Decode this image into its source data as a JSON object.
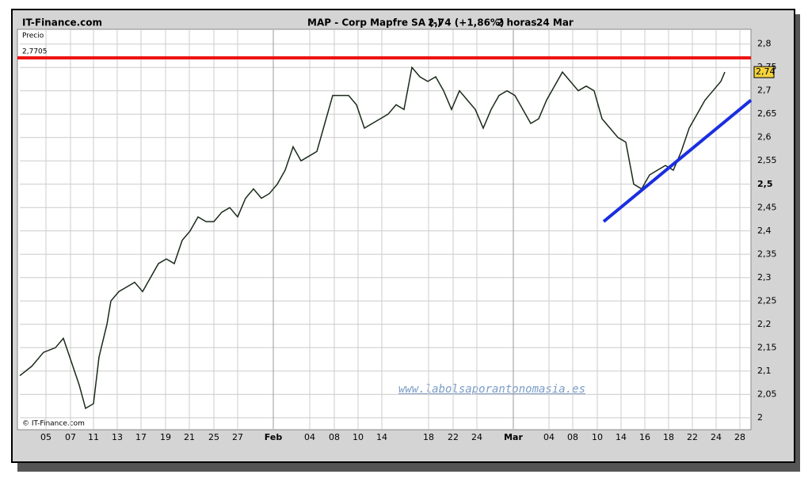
{
  "header": {
    "brand": "IT-Finance.com",
    "instrument": "MAP - Corp Mapfre SA (-)",
    "quote": "2,74 (+1,86%)",
    "interval": "2 horas",
    "date": "24 Mar"
  },
  "chart_data": {
    "type": "line",
    "y_label": "Precio",
    "copyright": "© IT-Finance.com",
    "watermark": "www.labolsaporantonomasia.es",
    "x": [
      0,
      1.5,
      3,
      4.5,
      5.5,
      6.5,
      7.5,
      8.3,
      9.3,
      10,
      11,
      11.5,
      12.5,
      13.5,
      14.5,
      15.5,
      16.5,
      17.5,
      18.5,
      19.5,
      20.5,
      21.5,
      22.5,
      23.5,
      24.5,
      25.5,
      26.5,
      27.5,
      28.5,
      29.5,
      30.5,
      31.5,
      32.5,
      33.5,
      34.5,
      35.5,
      36.5,
      37.5,
      38.5,
      39.5,
      40.5,
      41.5,
      42.5,
      43.5,
      44.5,
      45.5,
      46.5,
      47.5,
      48.5,
      49.5,
      50.5,
      51.5,
      52.5,
      53.5,
      54.5,
      55.5,
      56.5,
      57.5,
      58.5,
      59.5,
      60.5,
      61.5,
      62.5,
      63.5,
      64.5,
      65.5,
      66.5,
      67.5,
      68.5,
      69.5,
      70.5,
      71.5,
      72.5,
      73.5,
      74.5,
      75.5,
      76.5,
      77.5,
      78.5,
      79.5,
      80.5,
      81.5,
      82.5,
      83.5,
      84.5,
      85.5,
      86.5,
      87.5,
      88.5,
      89
    ],
    "series": [
      {
        "color": "#1a2a1a",
        "values": [
          2.09,
          2.11,
          2.14,
          2.15,
          2.17,
          2.12,
          2.07,
          2.02,
          2.03,
          2.13,
          2.2,
          2.25,
          2.27,
          2.28,
          2.29,
          2.27,
          2.3,
          2.33,
          2.34,
          2.33,
          2.38,
          2.4,
          2.43,
          2.42,
          2.42,
          2.44,
          2.45,
          2.43,
          2.47,
          2.49,
          2.47,
          2.48,
          2.5,
          2.53,
          2.58,
          2.55,
          2.56,
          2.57,
          2.63,
          2.69,
          2.69,
          2.69,
          2.67,
          2.62,
          2.63,
          2.64,
          2.65,
          2.67,
          2.66,
          2.75,
          2.73,
          2.72,
          2.73,
          2.7,
          2.66,
          2.7,
          2.68,
          2.66,
          2.62,
          2.66,
          2.69,
          2.7,
          2.69,
          2.66,
          2.63,
          2.64,
          2.68,
          2.71,
          2.74,
          2.72,
          2.7,
          2.71,
          2.7,
          2.64,
          2.62,
          2.6,
          2.59,
          2.5,
          2.49,
          2.52,
          2.53,
          2.54,
          2.53,
          2.57,
          2.62,
          2.65,
          2.68,
          2.7,
          2.72,
          2.74
        ]
      }
    ],
    "xlim": [
      0,
      92.3
    ],
    "xticks": [
      {
        "value": 3.3,
        "label": "05"
      },
      {
        "value": 6.4,
        "label": "07"
      },
      {
        "value": 9.3,
        "label": "11"
      },
      {
        "value": 12.3,
        "label": "13"
      },
      {
        "value": 15.3,
        "label": "17"
      },
      {
        "value": 18.4,
        "label": "19"
      },
      {
        "value": 21.4,
        "label": "21"
      },
      {
        "value": 24.5,
        "label": "25"
      },
      {
        "value": 27.5,
        "label": "27"
      },
      {
        "value": 32,
        "label": "Feb"
      },
      {
        "value": 36.6,
        "label": "04"
      },
      {
        "value": 39.7,
        "label": "08"
      },
      {
        "value": 42.7,
        "label": "10"
      },
      {
        "value": 45.7,
        "label": "14"
      },
      {
        "value": 51.6,
        "label": "18"
      },
      {
        "value": 54.7,
        "label": "22"
      },
      {
        "value": 57.7,
        "label": "24"
      },
      {
        "value": 62.3,
        "label": "Mar"
      },
      {
        "value": 66.8,
        "label": "04"
      },
      {
        "value": 69.8,
        "label": "08"
      },
      {
        "value": 72.9,
        "label": "10"
      },
      {
        "value": 75.9,
        "label": "14"
      },
      {
        "value": 78.9,
        "label": "16"
      },
      {
        "value": 81.9,
        "label": "18"
      },
      {
        "value": 84.9,
        "label": "22"
      },
      {
        "value": 87.9,
        "label": "24"
      },
      {
        "value": 90.9,
        "label": "28"
      }
    ],
    "ylim": [
      1.976,
      2.83
    ],
    "yticks": [
      2,
      {
        "value": 2.05,
        "label": "2,05"
      },
      {
        "value": 2.1,
        "label": "2,1"
      },
      {
        "value": 2.15,
        "label": "2,15"
      },
      {
        "value": 2.2,
        "label": "2,2"
      },
      {
        "value": 2.25,
        "label": "2,25"
      },
      {
        "value": 2.3,
        "label": "2,3"
      },
      {
        "value": 2.35,
        "label": "2,35"
      },
      {
        "value": 2.4,
        "label": "2,4"
      },
      {
        "value": 2.45,
        "label": "2,45"
      },
      {
        "value": 2.5,
        "label": "2,5"
      },
      {
        "value": 2.55,
        "label": "2,55"
      },
      {
        "value": 2.6,
        "label": "2,6"
      },
      {
        "value": 2.65,
        "label": "2,65"
      },
      {
        "value": 2.7,
        "label": "2,7"
      },
      {
        "value": 2.75,
        "label": "2,75"
      },
      {
        "value": 2.8,
        "label": "2,8"
      }
    ],
    "grid": true,
    "last_price": {
      "value": 2.74,
      "label": "2,74"
    },
    "resistance": {
      "value": 2.7705,
      "label": "2,7705",
      "color": "#ee1111"
    },
    "trendline": {
      "x": [
        73.7,
        92.3
      ],
      "y": [
        2.42,
        2.68
      ],
      "color": "#1a2ee0"
    }
  }
}
